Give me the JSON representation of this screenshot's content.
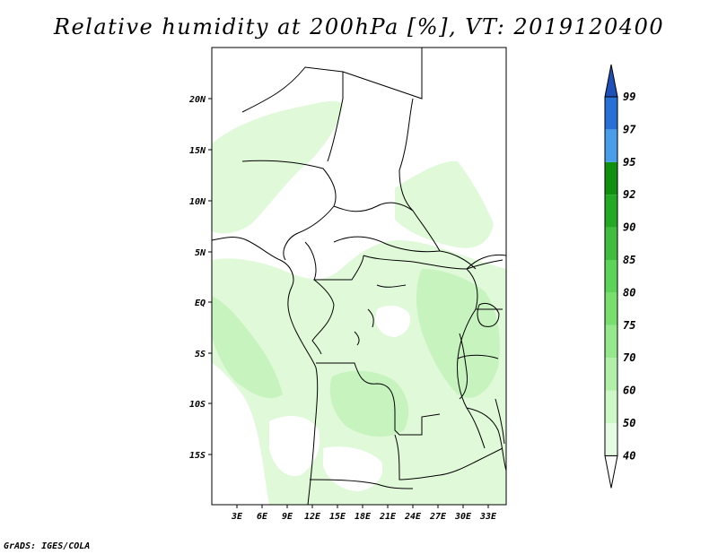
{
  "title": "Relative humidity at 200hPa [%], VT: 2019120400",
  "footer": "GrADS: IGES/COLA",
  "map": {
    "lat_labels": [
      "20N",
      "15N",
      "10N",
      "5N",
      "EQ",
      "5S",
      "10S",
      "15S"
    ],
    "lon_labels": [
      "3E",
      "6E",
      "9E",
      "12E",
      "15E",
      "18E",
      "21E",
      "24E",
      "27E",
      "30E",
      "33E"
    ]
  },
  "colorbar": {
    "levels": [
      "40",
      "50",
      "60",
      "70",
      "75",
      "80",
      "85",
      "90",
      "92",
      "95",
      "97",
      "99"
    ],
    "colors": [
      "#ffffff",
      "#e6fbe3",
      "#cdf7c6",
      "#b2f0aa",
      "#96e88c",
      "#78de6e",
      "#5ed35a",
      "#3fbd3f",
      "#23a923",
      "#10900f",
      "#4a9de8",
      "#2870d6",
      "#1f4fb8"
    ]
  },
  "colors": {
    "humid_light": "#dff9d9",
    "humid_mid": "#c7f3bf",
    "border": "#000000"
  }
}
